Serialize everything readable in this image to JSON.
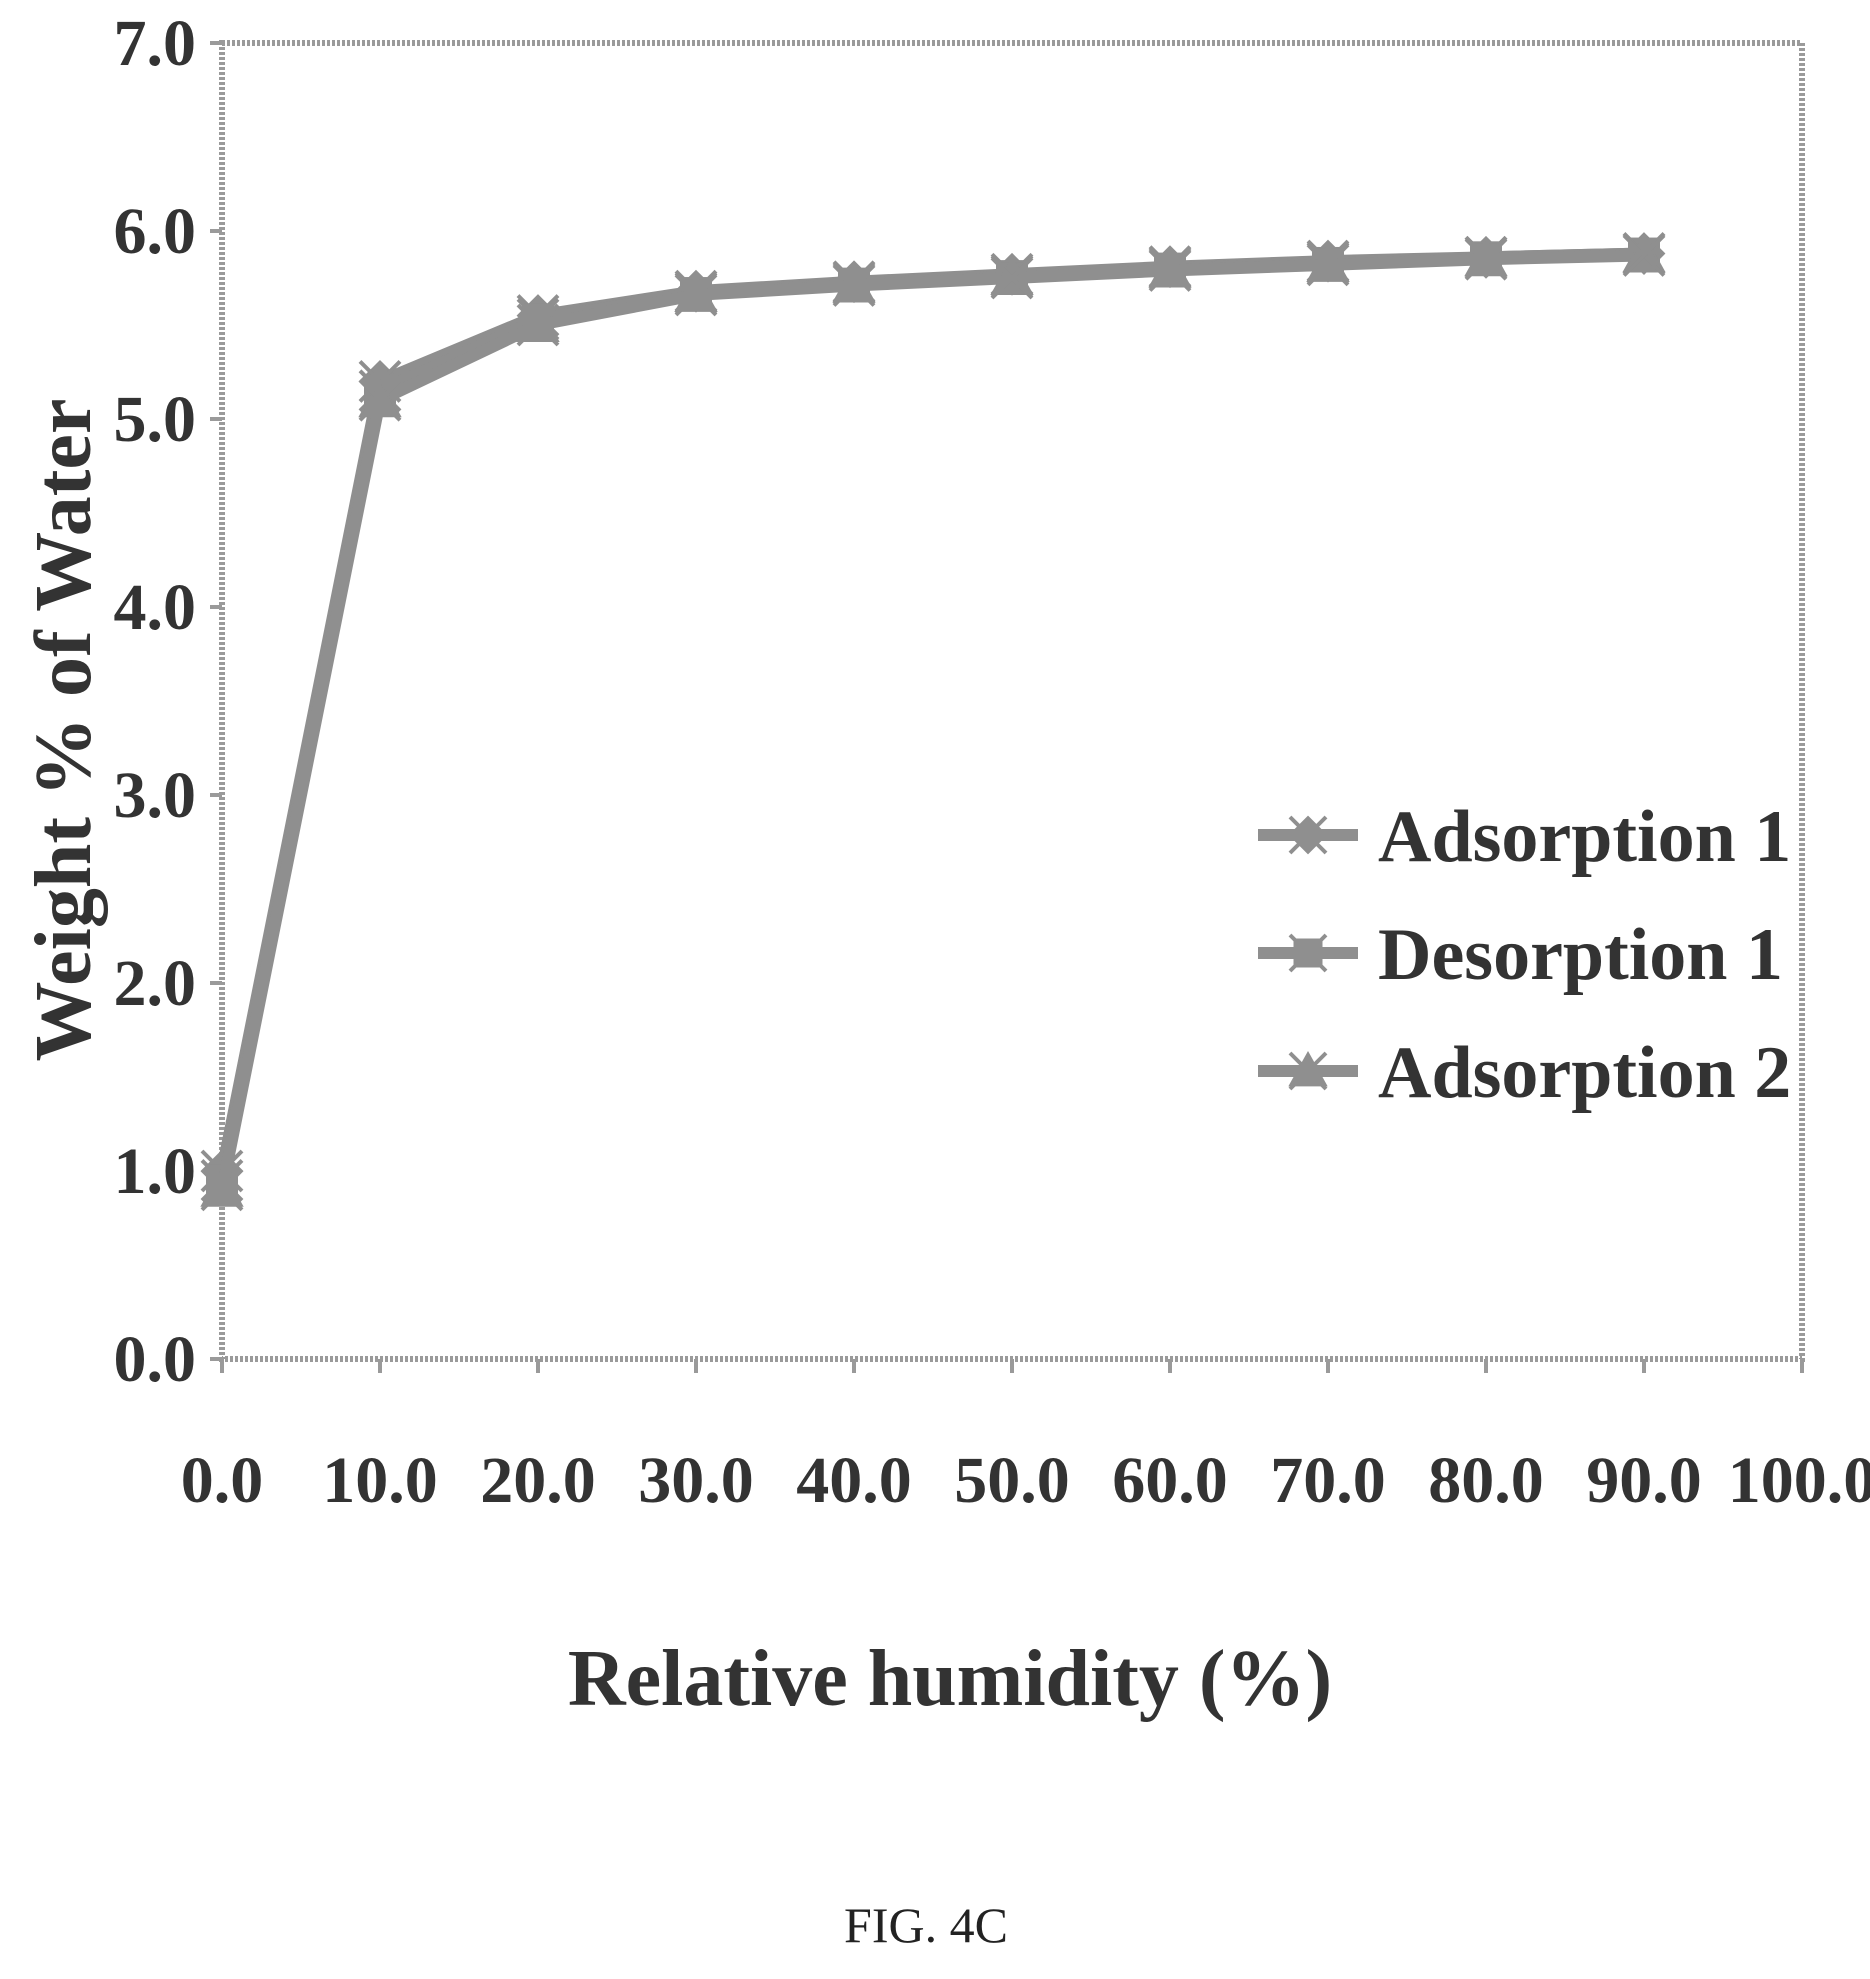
{
  "figure_caption": "FIG. 4C",
  "colors": {
    "series": "#8f8f8f",
    "frame": "#9a9a9a",
    "text": "#333333"
  },
  "chart_data": {
    "type": "line",
    "title": "",
    "xlabel": "Relative humidity (%)",
    "ylabel": "Weight % of Water",
    "xlim": [
      0,
      100
    ],
    "ylim": [
      0,
      7
    ],
    "xticks": [
      0,
      10,
      20,
      30,
      40,
      50,
      60,
      70,
      80,
      90,
      100
    ],
    "xtick_labels": [
      "0.0",
      "10.0",
      "20.0",
      "30.0",
      "40.0",
      "50.0",
      "60.0",
      "70.0",
      "80.0",
      "90.0",
      "100.0"
    ],
    "yticks": [
      0,
      1,
      2,
      3,
      4,
      5,
      6,
      7
    ],
    "ytick_labels": [
      "0.0",
      "1.0",
      "2.0",
      "3.0",
      "4.0",
      "5.0",
      "6.0",
      "7.0"
    ],
    "grid": false,
    "legend_position": "right",
    "x": [
      0,
      10,
      20,
      30,
      40,
      50,
      60,
      70,
      80,
      90
    ],
    "series": [
      {
        "name": "Adsorption 1",
        "marker": "diamond",
        "values": [
          1.0,
          5.2,
          5.55,
          5.68,
          5.73,
          5.77,
          5.81,
          5.84,
          5.86,
          5.88
        ]
      },
      {
        "name": "Desorption 1",
        "marker": "square",
        "values": [
          0.95,
          5.15,
          5.53,
          5.67,
          5.72,
          5.76,
          5.8,
          5.83,
          5.86,
          5.88
        ]
      },
      {
        "name": "Adsorption 2",
        "marker": "triangle",
        "values": [
          0.9,
          5.1,
          5.5,
          5.66,
          5.71,
          5.75,
          5.79,
          5.82,
          5.85,
          5.87
        ]
      }
    ]
  }
}
